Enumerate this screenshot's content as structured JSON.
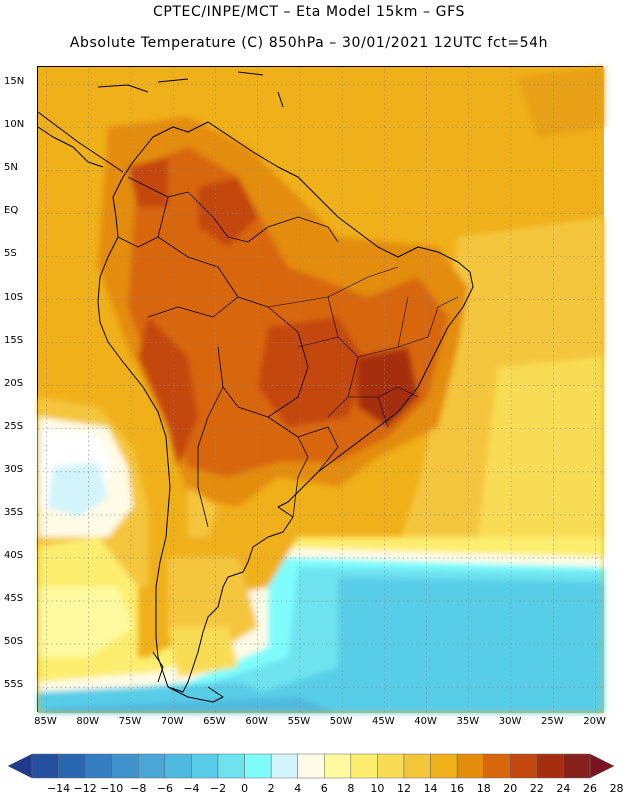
{
  "header": {
    "line1": "CPTEC/INPE/MCT –  Eta Model 15km – GFS",
    "line2": "Absolute Temperature (C) 850hPa – 30/01/2021 12UTC fct=54h"
  },
  "map": {
    "lon_range": [
      -86,
      -19
    ],
    "lat_range": [
      17,
      -58
    ],
    "lat_ticks": [
      {
        "value": 15,
        "label": "15N"
      },
      {
        "value": 10,
        "label": "10N"
      },
      {
        "value": 5,
        "label": "5N"
      },
      {
        "value": 0,
        "label": "EQ"
      },
      {
        "value": -5,
        "label": "5S"
      },
      {
        "value": -10,
        "label": "10S"
      },
      {
        "value": -15,
        "label": "15S"
      },
      {
        "value": -20,
        "label": "20S"
      },
      {
        "value": -25,
        "label": "25S"
      },
      {
        "value": -30,
        "label": "30S"
      },
      {
        "value": -35,
        "label": "35S"
      },
      {
        "value": -40,
        "label": "40S"
      },
      {
        "value": -45,
        "label": "45S"
      },
      {
        "value": -50,
        "label": "50S"
      },
      {
        "value": -55,
        "label": "55S"
      }
    ],
    "lon_ticks": [
      {
        "value": -85,
        "label": "85W"
      },
      {
        "value": -80,
        "label": "80W"
      },
      {
        "value": -75,
        "label": "75W"
      },
      {
        "value": -70,
        "label": "70W"
      },
      {
        "value": -65,
        "label": "65W"
      },
      {
        "value": -60,
        "label": "60W"
      },
      {
        "value": -55,
        "label": "55W"
      },
      {
        "value": -50,
        "label": "50W"
      },
      {
        "value": -45,
        "label": "45W"
      },
      {
        "value": -40,
        "label": "40W"
      },
      {
        "value": -35,
        "label": "35W"
      },
      {
        "value": -30,
        "label": "30W"
      },
      {
        "value": -25,
        "label": "25W"
      },
      {
        "value": -20,
        "label": "20W"
      }
    ]
  },
  "colorbar": {
    "unit": "C",
    "labels": [
      "-14",
      "-12",
      "-10",
      "-8",
      "-6",
      "-4",
      "-2",
      "0",
      "2",
      "4",
      "6",
      "8",
      "10",
      "12",
      "14",
      "16",
      "18",
      "20",
      "22",
      "24",
      "26",
      "28"
    ],
    "colors": [
      "#1f3a8a",
      "#23509e",
      "#2a67b2",
      "#357dc2",
      "#3f92cc",
      "#48a7d6",
      "#4fbadf",
      "#59cde8",
      "#6ee3ef",
      "#7ffdfd",
      "#d2f4fa",
      "#fffbe6",
      "#fffaa0",
      "#fdee70",
      "#f9dc55",
      "#f4c63c",
      "#f0b01a",
      "#e48c0c",
      "#d8660b",
      "#c4470d",
      "#a52e11",
      "#84211a",
      "#7d1223"
    ]
  }
}
